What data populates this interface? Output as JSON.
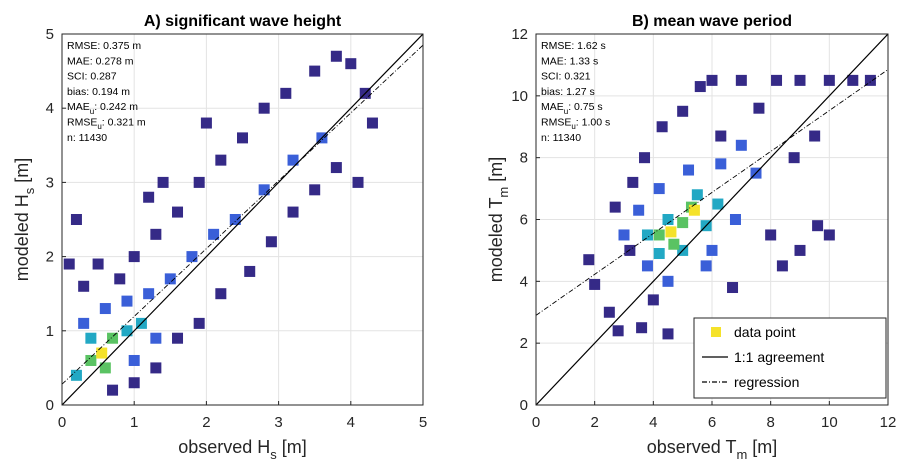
{
  "chart_data": [
    {
      "type": "scatter",
      "title": "A) significant wave height",
      "xlabel": [
        "observed H",
        "s",
        " [m]"
      ],
      "ylabel": [
        "modeled H",
        "s",
        " [m]"
      ],
      "xlim": [
        0,
        5
      ],
      "ylim": [
        0,
        5
      ],
      "xticks": [
        0,
        1,
        2,
        3,
        4,
        5
      ],
      "yticks": [
        0,
        1,
        2,
        3,
        4,
        5
      ],
      "grid": true,
      "stats": [
        "RMSE: 0.375 m",
        "MAE: 0.278 m",
        "SCI: 0.287",
        "bias: 0.194 m",
        [
          "MAE",
          "u",
          ": 0.242 m"
        ],
        [
          "RMSE",
          "u",
          ": 0.321 m"
        ],
        "n: 11430"
      ],
      "colormap": [
        "#352a87",
        "#3a5fd8",
        "#22a8c4",
        "#5ac363",
        "#f5e22a"
      ],
      "identity_line": true,
      "regression": {
        "x": [
          0,
          5
        ],
        "y": [
          0.28,
          4.85
        ]
      },
      "x": [
        0.1,
        0.3,
        0.5,
        0.8,
        1.0,
        1.3,
        1.6,
        1.9,
        2.2,
        2.0,
        2.5,
        2.8,
        3.1,
        3.5,
        3.8,
        4.0,
        4.2,
        4.3,
        4.1,
        3.8,
        3.5,
        3.2,
        2.9,
        2.6,
        2.2,
        1.9,
        1.6,
        1.3,
        1.0,
        0.7,
        1.4,
        1.2,
        0.2,
        0.3,
        0.6,
        0.9,
        1.2,
        1.5,
        1.8,
        2.1,
        2.4,
        2.8,
        3.2,
        3.6,
        1.3,
        1.0,
        0.2,
        0.4,
        0.9,
        1.1,
        0.4,
        0.7,
        0.6,
        0.55
      ],
      "y": [
        1.9,
        1.6,
        1.9,
        1.7,
        2.0,
        2.3,
        2.6,
        3.0,
        3.3,
        3.8,
        3.6,
        4.0,
        4.2,
        4.5,
        4.7,
        4.6,
        4.2,
        3.8,
        3.0,
        3.2,
        2.9,
        2.6,
        2.2,
        1.8,
        1.5,
        1.1,
        0.9,
        0.5,
        0.3,
        0.2,
        3.0,
        2.8,
        2.5,
        1.1,
        1.3,
        1.4,
        1.5,
        1.7,
        2.0,
        2.3,
        2.5,
        2.9,
        3.3,
        3.6,
        0.9,
        0.6,
        0.4,
        0.9,
        1.0,
        1.1,
        0.6,
        0.9,
        0.5,
        0.7
      ],
      "density": [
        0,
        0,
        0,
        0,
        0,
        0,
        0,
        0,
        0,
        0,
        0,
        0,
        0,
        0,
        0,
        0,
        0,
        0,
        0,
        0,
        0,
        0,
        0,
        0,
        0,
        0,
        0,
        0,
        0,
        0,
        0,
        0,
        0,
        1,
        1,
        1,
        1,
        1,
        1,
        1,
        1,
        1,
        1,
        1,
        1,
        1,
        2,
        2,
        2,
        2,
        3,
        3,
        3,
        4
      ]
    },
    {
      "type": "scatter",
      "title": "B) mean wave period",
      "xlabel": [
        "observed T",
        "m",
        " [m]"
      ],
      "ylabel": [
        "modeled T",
        "m",
        " [m]"
      ],
      "xlim": [
        0,
        12
      ],
      "ylim": [
        0,
        12
      ],
      "xticks": [
        0,
        2,
        4,
        6,
        8,
        10,
        12
      ],
      "yticks": [
        0,
        2,
        4,
        6,
        8,
        10,
        12
      ],
      "grid": true,
      "stats": [
        "RMSE: 1.62 s",
        "MAE: 1.33 s",
        "SCI: 0.321",
        "bias: 1.27 s",
        [
          "MAE",
          "u",
          ": 0.75 s"
        ],
        [
          "RMSE",
          "u",
          ": 1.00 s"
        ],
        "n: 11340"
      ],
      "colormap": [
        "#352a87",
        "#3a5fd8",
        "#22a8c4",
        "#5ac363",
        "#f5e22a"
      ],
      "identity_line": true,
      "regression": {
        "x": [
          0,
          12
        ],
        "y": [
          2.9,
          10.85
        ]
      },
      "legend": [
        "data point",
        "1:1 agreement",
        "regression"
      ],
      "legend_position": "lower right",
      "x": [
        1.8,
        2.0,
        2.5,
        2.8,
        3.2,
        2.7,
        3.3,
        3.7,
        4.3,
        5.0,
        5.6,
        6.0,
        7.0,
        7.6,
        8.2,
        9.0,
        10.0,
        10.8,
        11.4,
        9.5,
        8.8,
        9.6,
        9.0,
        8.0,
        6.7,
        5.8,
        4.5,
        3.6,
        4.0,
        10.0,
        8.4,
        6.3,
        3.0,
        3.5,
        4.2,
        5.2,
        6.3,
        7.5,
        6.8,
        5.8,
        4.5,
        3.8,
        7.0,
        6.0,
        3.8,
        4.5,
        5.5,
        6.2,
        5.0,
        4.2,
        5.8,
        4.2,
        5.3,
        5.0,
        4.7,
        4.6,
        5.4
      ],
      "y": [
        4.7,
        3.9,
        3.0,
        2.4,
        5.0,
        6.4,
        7.2,
        8.0,
        9.0,
        9.5,
        10.3,
        10.5,
        10.5,
        9.6,
        10.5,
        10.5,
        10.5,
        10.5,
        10.5,
        8.7,
        8.0,
        5.8,
        5.0,
        5.5,
        3.8,
        2.0,
        2.3,
        2.5,
        3.4,
        5.5,
        4.5,
        8.7,
        5.5,
        6.3,
        7.0,
        7.6,
        7.8,
        7.5,
        6.0,
        4.5,
        4.0,
        4.5,
        8.4,
        5.0,
        5.5,
        6.0,
        6.8,
        6.5,
        5.0,
        4.9,
        5.8,
        5.5,
        6.4,
        5.9,
        5.2,
        5.6,
        6.3
      ],
      "density": [
        0,
        0,
        0,
        0,
        0,
        0,
        0,
        0,
        0,
        0,
        0,
        0,
        0,
        0,
        0,
        0,
        0,
        0,
        0,
        0,
        0,
        0,
        0,
        0,
        0,
        0,
        0,
        0,
        0,
        0,
        0,
        0,
        1,
        1,
        1,
        1,
        1,
        1,
        1,
        1,
        1,
        1,
        1,
        1,
        2,
        2,
        2,
        2,
        2,
        2,
        2,
        3,
        3,
        3,
        3,
        4,
        4
      ]
    }
  ]
}
